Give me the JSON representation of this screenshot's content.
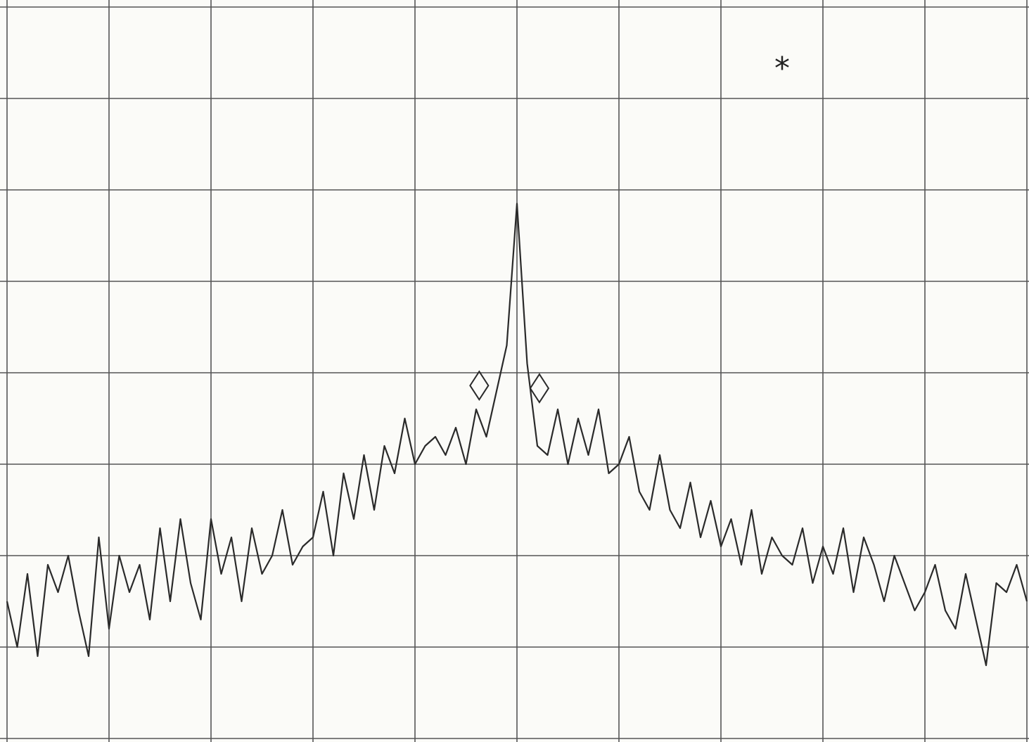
{
  "chart_data": {
    "type": "line",
    "annotation": "*",
    "xlim": [
      0,
      10
    ],
    "xticks": [
      0,
      1,
      2,
      3,
      4,
      5,
      6,
      7,
      8,
      9,
      10
    ],
    "ylim": [
      0,
      8
    ],
    "yticks": [
      0,
      1,
      2,
      3,
      4,
      5,
      6,
      7,
      8
    ],
    "grid": true,
    "color": "#2a2a2a",
    "x": [
      0,
      0.1,
      0.2,
      0.3,
      0.4,
      0.5,
      0.6,
      0.7,
      0.8,
      0.9,
      1,
      1.1,
      1.2,
      1.3,
      1.4,
      1.5,
      1.6,
      1.7,
      1.8,
      1.9,
      2,
      2.1,
      2.2,
      2.3,
      2.4,
      2.5,
      2.6,
      2.7,
      2.8,
      2.9,
      3,
      3.1,
      3.2,
      3.3,
      3.4,
      3.5,
      3.6,
      3.7,
      3.8,
      3.9,
      4,
      4.1,
      4.2,
      4.3,
      4.4,
      4.5,
      4.6,
      4.7,
      4.8,
      4.9,
      5,
      5.1,
      5.2,
      5.3,
      5.4,
      5.5,
      5.6,
      5.7,
      5.8,
      5.9,
      6,
      6.1,
      6.2,
      6.3,
      6.4,
      6.5,
      6.6,
      6.7,
      6.8,
      6.9,
      7,
      7.1,
      7.2,
      7.3,
      7.4,
      7.5,
      7.6,
      7.7,
      7.8,
      7.9,
      8,
      8.1,
      8.2,
      8.3,
      8.4,
      8.5,
      8.6,
      8.7,
      8.8,
      8.9,
      9,
      9.1,
      9.2,
      9.3,
      9.4,
      9.5,
      9.6,
      9.7,
      9.8,
      9.9,
      10
    ],
    "values": [
      1.5,
      1.0,
      1.8,
      0.9,
      1.9,
      1.6,
      2.0,
      1.4,
      0.9,
      2.2,
      1.2,
      2.0,
      1.6,
      1.9,
      1.3,
      2.3,
      1.5,
      2.4,
      1.7,
      1.3,
      2.4,
      1.8,
      2.2,
      1.5,
      2.3,
      1.8,
      2.0,
      2.5,
      1.9,
      2.1,
      2.2,
      2.7,
      2.0,
      2.9,
      2.4,
      3.1,
      2.5,
      3.2,
      2.9,
      3.5,
      3.0,
      3.2,
      3.3,
      3.1,
      3.4,
      3.0,
      3.6,
      3.3,
      3.8,
      4.3,
      5.85,
      4.1,
      3.2,
      3.1,
      3.6,
      3.0,
      3.5,
      3.1,
      3.6,
      2.9,
      3.0,
      3.3,
      2.7,
      2.5,
      3.1,
      2.5,
      2.3,
      2.8,
      2.2,
      2.6,
      2.1,
      2.4,
      1.9,
      2.5,
      1.8,
      2.2,
      2.0,
      1.9,
      2.3,
      1.7,
      2.1,
      1.8,
      2.3,
      1.6,
      2.2,
      1.9,
      1.5,
      2.0,
      1.7,
      1.4,
      1.6,
      1.9,
      1.4,
      1.2,
      1.8,
      1.3,
      0.8,
      1.7,
      1.6,
      1.9,
      1.5
    ],
    "markers": {
      "x": [
        4.63,
        5.22
      ],
      "y": [
        3.86,
        3.83
      ]
    }
  }
}
